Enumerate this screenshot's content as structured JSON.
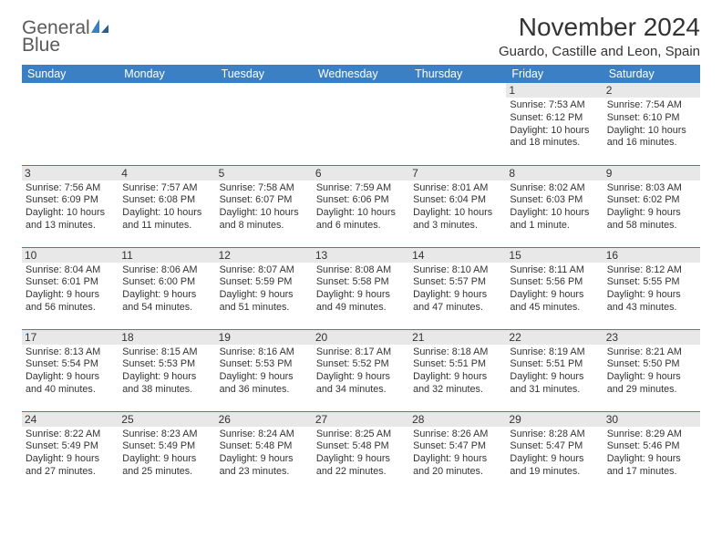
{
  "logo": {
    "word1": "General",
    "word2": "Blue"
  },
  "title": "November 2024",
  "location": "Guardo, Castille and Leon, Spain",
  "colors": {
    "header_bg": "#3b7fc4",
    "header_text": "#ffffff",
    "day_bg": "#e8e8e8",
    "border": "#3b7fc4",
    "text": "#333333",
    "background": "#ffffff"
  },
  "typography": {
    "title_fontsize": 28,
    "location_fontsize": 15,
    "dayheader_fontsize": 12.5,
    "daynum_fontsize": 12,
    "body_fontsize": 10.8
  },
  "day_headers": [
    "Sunday",
    "Monday",
    "Tuesday",
    "Wednesday",
    "Thursday",
    "Friday",
    "Saturday"
  ],
  "weeks": [
    [
      null,
      null,
      null,
      null,
      null,
      {
        "n": "1",
        "sunrise": "Sunrise: 7:53 AM",
        "sunset": "Sunset: 6:12 PM",
        "daylight": "Daylight: 10 hours and 18 minutes."
      },
      {
        "n": "2",
        "sunrise": "Sunrise: 7:54 AM",
        "sunset": "Sunset: 6:10 PM",
        "daylight": "Daylight: 10 hours and 16 minutes."
      }
    ],
    [
      {
        "n": "3",
        "sunrise": "Sunrise: 7:56 AM",
        "sunset": "Sunset: 6:09 PM",
        "daylight": "Daylight: 10 hours and 13 minutes."
      },
      {
        "n": "4",
        "sunrise": "Sunrise: 7:57 AM",
        "sunset": "Sunset: 6:08 PM",
        "daylight": "Daylight: 10 hours and 11 minutes."
      },
      {
        "n": "5",
        "sunrise": "Sunrise: 7:58 AM",
        "sunset": "Sunset: 6:07 PM",
        "daylight": "Daylight: 10 hours and 8 minutes."
      },
      {
        "n": "6",
        "sunrise": "Sunrise: 7:59 AM",
        "sunset": "Sunset: 6:06 PM",
        "daylight": "Daylight: 10 hours and 6 minutes."
      },
      {
        "n": "7",
        "sunrise": "Sunrise: 8:01 AM",
        "sunset": "Sunset: 6:04 PM",
        "daylight": "Daylight: 10 hours and 3 minutes."
      },
      {
        "n": "8",
        "sunrise": "Sunrise: 8:02 AM",
        "sunset": "Sunset: 6:03 PM",
        "daylight": "Daylight: 10 hours and 1 minute."
      },
      {
        "n": "9",
        "sunrise": "Sunrise: 8:03 AM",
        "sunset": "Sunset: 6:02 PM",
        "daylight": "Daylight: 9 hours and 58 minutes."
      }
    ],
    [
      {
        "n": "10",
        "sunrise": "Sunrise: 8:04 AM",
        "sunset": "Sunset: 6:01 PM",
        "daylight": "Daylight: 9 hours and 56 minutes."
      },
      {
        "n": "11",
        "sunrise": "Sunrise: 8:06 AM",
        "sunset": "Sunset: 6:00 PM",
        "daylight": "Daylight: 9 hours and 54 minutes."
      },
      {
        "n": "12",
        "sunrise": "Sunrise: 8:07 AM",
        "sunset": "Sunset: 5:59 PM",
        "daylight": "Daylight: 9 hours and 51 minutes."
      },
      {
        "n": "13",
        "sunrise": "Sunrise: 8:08 AM",
        "sunset": "Sunset: 5:58 PM",
        "daylight": "Daylight: 9 hours and 49 minutes."
      },
      {
        "n": "14",
        "sunrise": "Sunrise: 8:10 AM",
        "sunset": "Sunset: 5:57 PM",
        "daylight": "Daylight: 9 hours and 47 minutes."
      },
      {
        "n": "15",
        "sunrise": "Sunrise: 8:11 AM",
        "sunset": "Sunset: 5:56 PM",
        "daylight": "Daylight: 9 hours and 45 minutes."
      },
      {
        "n": "16",
        "sunrise": "Sunrise: 8:12 AM",
        "sunset": "Sunset: 5:55 PM",
        "daylight": "Daylight: 9 hours and 43 minutes."
      }
    ],
    [
      {
        "n": "17",
        "sunrise": "Sunrise: 8:13 AM",
        "sunset": "Sunset: 5:54 PM",
        "daylight": "Daylight: 9 hours and 40 minutes."
      },
      {
        "n": "18",
        "sunrise": "Sunrise: 8:15 AM",
        "sunset": "Sunset: 5:53 PM",
        "daylight": "Daylight: 9 hours and 38 minutes."
      },
      {
        "n": "19",
        "sunrise": "Sunrise: 8:16 AM",
        "sunset": "Sunset: 5:53 PM",
        "daylight": "Daylight: 9 hours and 36 minutes."
      },
      {
        "n": "20",
        "sunrise": "Sunrise: 8:17 AM",
        "sunset": "Sunset: 5:52 PM",
        "daylight": "Daylight: 9 hours and 34 minutes."
      },
      {
        "n": "21",
        "sunrise": "Sunrise: 8:18 AM",
        "sunset": "Sunset: 5:51 PM",
        "daylight": "Daylight: 9 hours and 32 minutes."
      },
      {
        "n": "22",
        "sunrise": "Sunrise: 8:19 AM",
        "sunset": "Sunset: 5:51 PM",
        "daylight": "Daylight: 9 hours and 31 minutes."
      },
      {
        "n": "23",
        "sunrise": "Sunrise: 8:21 AM",
        "sunset": "Sunset: 5:50 PM",
        "daylight": "Daylight: 9 hours and 29 minutes."
      }
    ],
    [
      {
        "n": "24",
        "sunrise": "Sunrise: 8:22 AM",
        "sunset": "Sunset: 5:49 PM",
        "daylight": "Daylight: 9 hours and 27 minutes."
      },
      {
        "n": "25",
        "sunrise": "Sunrise: 8:23 AM",
        "sunset": "Sunset: 5:49 PM",
        "daylight": "Daylight: 9 hours and 25 minutes."
      },
      {
        "n": "26",
        "sunrise": "Sunrise: 8:24 AM",
        "sunset": "Sunset: 5:48 PM",
        "daylight": "Daylight: 9 hours and 23 minutes."
      },
      {
        "n": "27",
        "sunrise": "Sunrise: 8:25 AM",
        "sunset": "Sunset: 5:48 PM",
        "daylight": "Daylight: 9 hours and 22 minutes."
      },
      {
        "n": "28",
        "sunrise": "Sunrise: 8:26 AM",
        "sunset": "Sunset: 5:47 PM",
        "daylight": "Daylight: 9 hours and 20 minutes."
      },
      {
        "n": "29",
        "sunrise": "Sunrise: 8:28 AM",
        "sunset": "Sunset: 5:47 PM",
        "daylight": "Daylight: 9 hours and 19 minutes."
      },
      {
        "n": "30",
        "sunrise": "Sunrise: 8:29 AM",
        "sunset": "Sunset: 5:46 PM",
        "daylight": "Daylight: 9 hours and 17 minutes."
      }
    ]
  ]
}
